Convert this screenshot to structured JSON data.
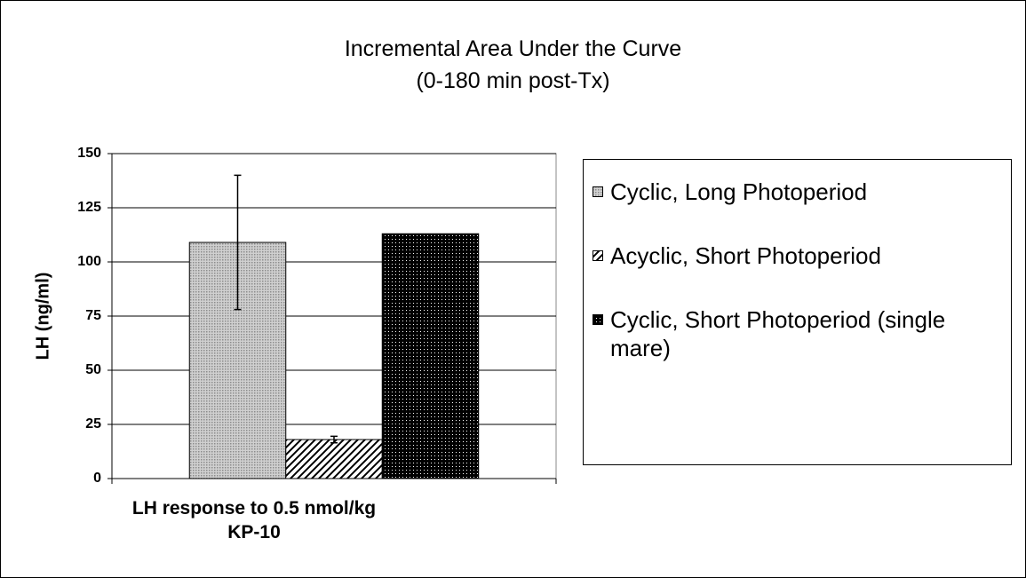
{
  "chart_data": {
    "type": "bar",
    "title": "Incremental Area Under the Curve",
    "subtitle": "(0-180 min post-Tx)",
    "y_label": "LH (ng/ml)",
    "categories": [
      "LH response to 0.5 nmol/kg KP-10"
    ],
    "series": [
      {
        "name": "Cyclic, Long Photoperiod",
        "color": "#8c8c8c",
        "pattern": "dense-dots",
        "values": [
          109
        ],
        "errors": [
          31
        ]
      },
      {
        "name": "Acyclic, Short Photoperiod",
        "color": "#000000",
        "pattern": "diagonal-hatch",
        "values": [
          18
        ],
        "errors": [
          1.5
        ]
      },
      {
        "name": "Cyclic, Short Photoperiod (single mare)",
        "color": "#000000",
        "pattern": "sparse-dots",
        "values": [
          113
        ]
      }
    ],
    "ylim": [
      0,
      150
    ],
    "yticks": [
      0,
      25,
      50,
      75,
      100,
      125,
      150
    ],
    "grid": true,
    "legend": "right"
  }
}
